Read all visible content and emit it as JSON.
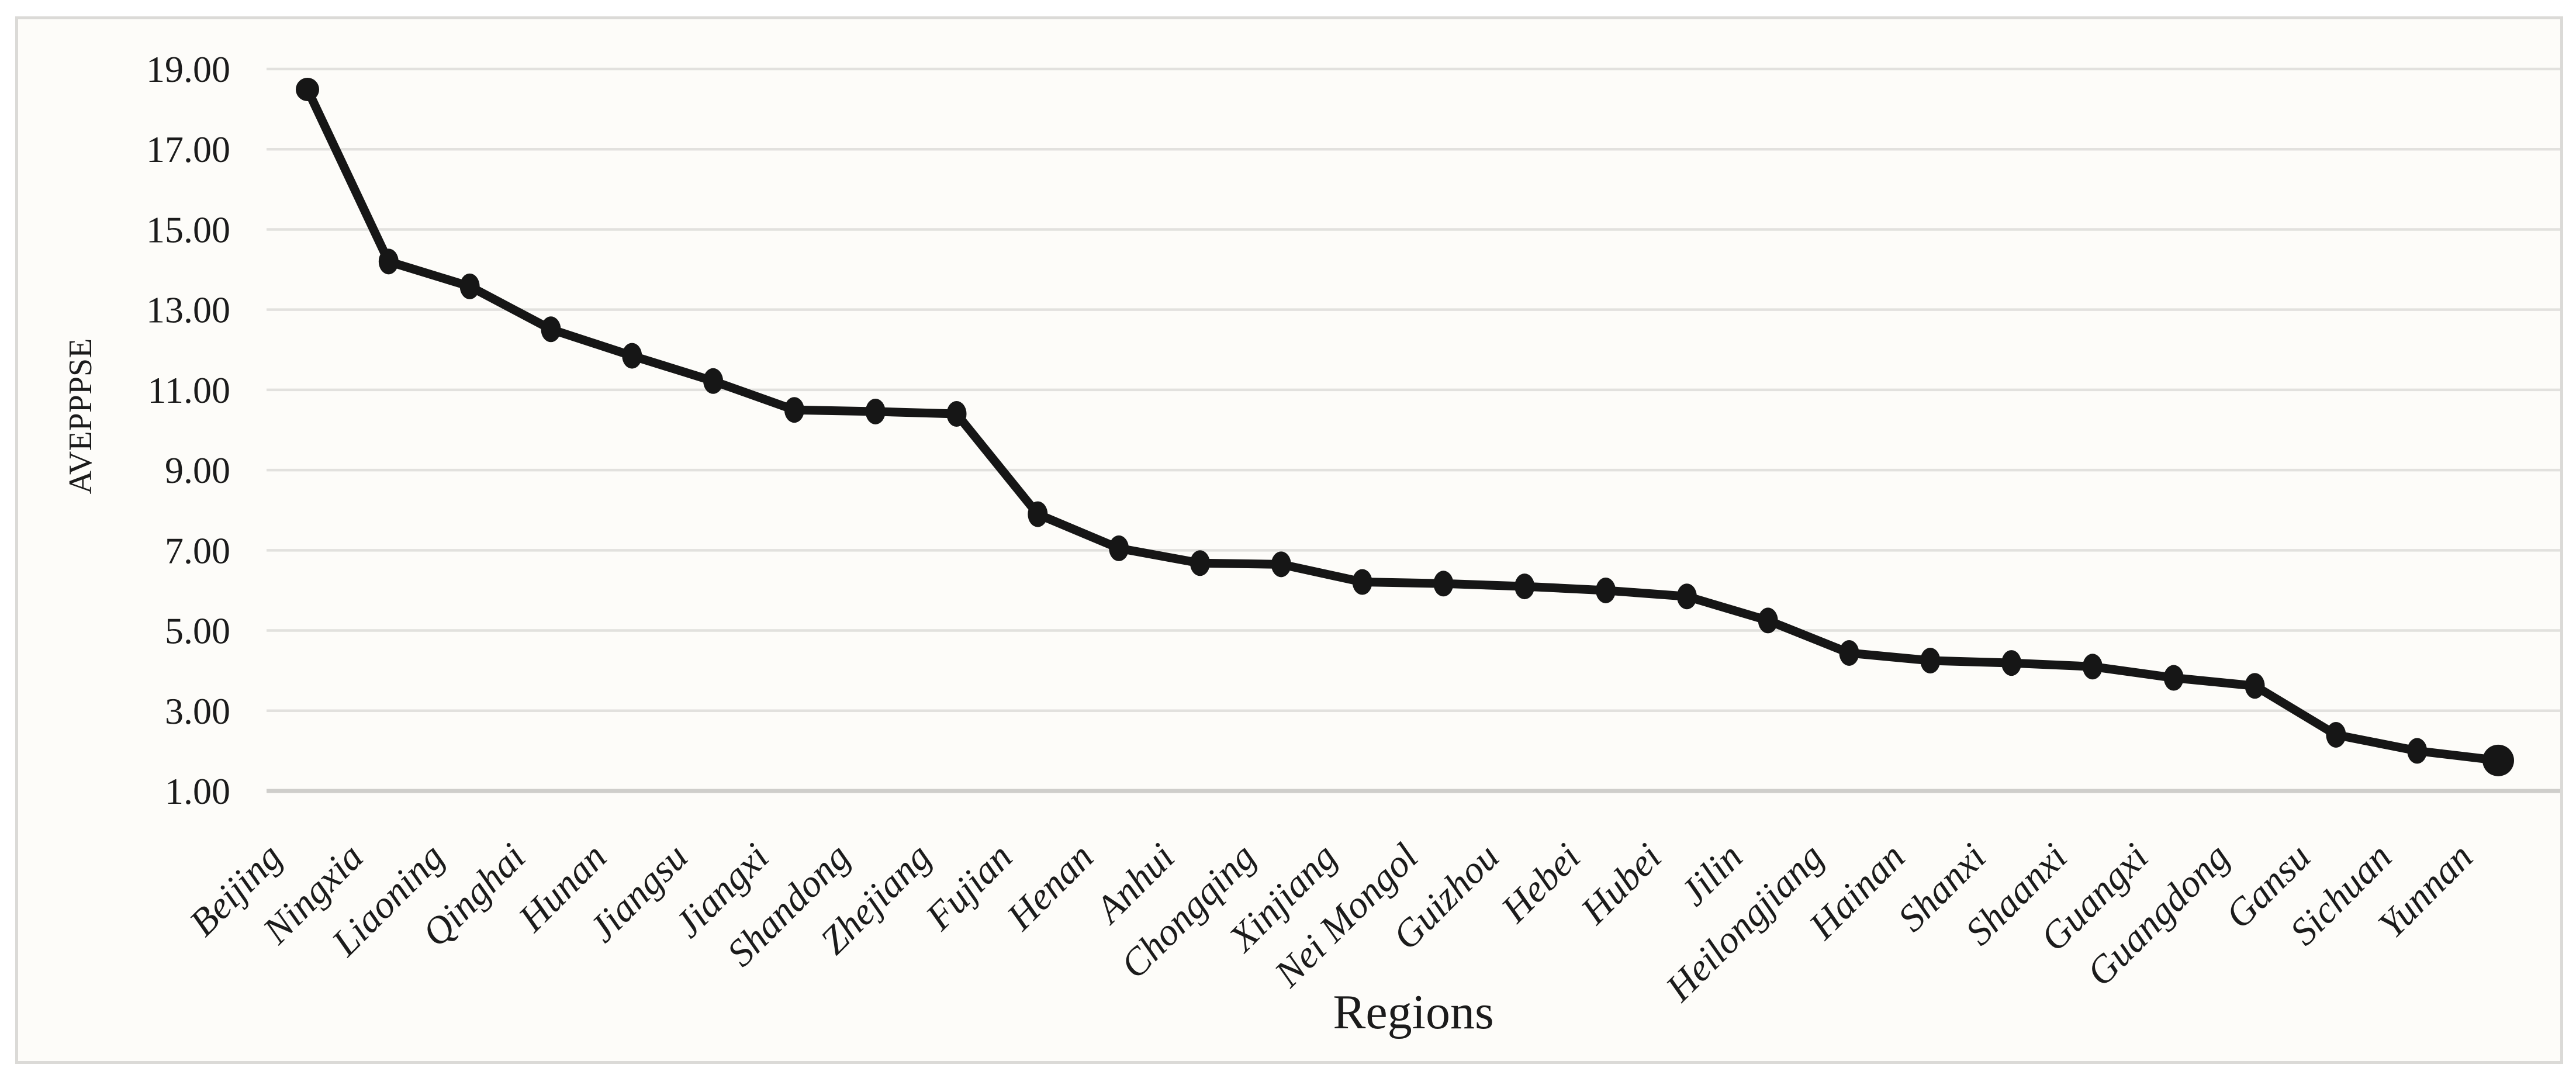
{
  "chart_data": {
    "type": "line",
    "title": "",
    "xlabel": "Regions",
    "ylabel": "AVEPPPSE",
    "categories": [
      "Beijing",
      "Ningxia",
      "Liaoning",
      "Qinghai",
      "Hunan",
      "Jiangsu",
      "Jiangxi",
      "Shandong",
      "Zhejiang",
      "Fujian",
      "Henan",
      "Anhui",
      "Chongqing",
      "Xinjiang",
      "Nei Mongol",
      "Guizhou",
      "Hebei",
      "Hubei",
      "Jilin",
      "Heilongjiang",
      "Hainan",
      "Shanxi",
      "Shaanxi",
      "Guangxi",
      "Guangdong",
      "Gansu",
      "Sichuan",
      "Yunnan"
    ],
    "values": [
      18.49,
      14.2,
      13.58,
      12.51,
      11.85,
      11.22,
      10.5,
      10.46,
      10.4,
      7.9,
      7.05,
      6.68,
      6.65,
      6.21,
      6.17,
      6.1,
      6.0,
      5.85,
      5.25,
      4.44,
      4.25,
      4.19,
      4.1,
      3.82,
      3.62,
      2.4,
      2.0,
      1.76
    ],
    "ylim": [
      1.0,
      19.0
    ],
    "y_tick_step": 2.0,
    "y_tick_labels": [
      "19.00",
      "17.00",
      "15.00",
      "13.00",
      "11.00",
      "9.00",
      "7.00",
      "5.00",
      "3.00",
      "1.00"
    ],
    "grid": "horizontal-only",
    "legend": "none",
    "colors": {
      "line": "#161616",
      "marker": "#161616",
      "gridline": "#e2e1de",
      "axis_line": "#cfcecb",
      "text": "#1b1b1b",
      "plot_background": "#fdfcf9",
      "frame_border": "#dbdad7",
      "page_background": "#ffffff"
    }
  }
}
